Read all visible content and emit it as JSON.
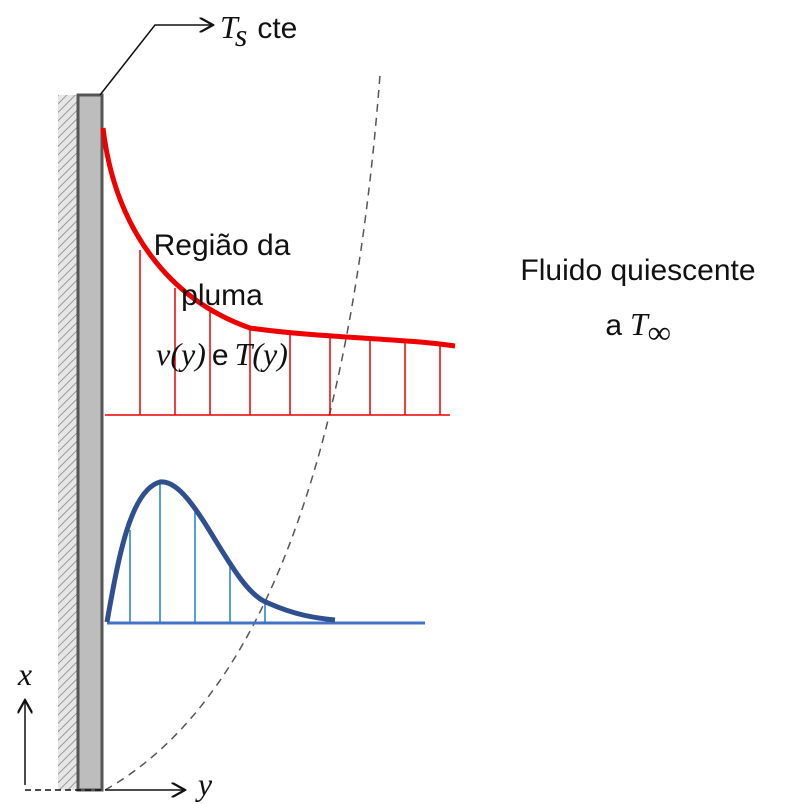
{
  "wall_label": {
    "symbol": "T",
    "subscript": "s",
    "text": "cte"
  },
  "plume_label": {
    "line1": "Região da",
    "line2": "pluma",
    "velocity": "v(y)",
    "conj": "e",
    "temperature": "T(y)"
  },
  "fluid_label": {
    "line1": "Fluido quiescente",
    "prefix": "a",
    "symbol": "T",
    "subscript": "∞"
  },
  "axes": {
    "x": "x",
    "y": "y"
  }
}
